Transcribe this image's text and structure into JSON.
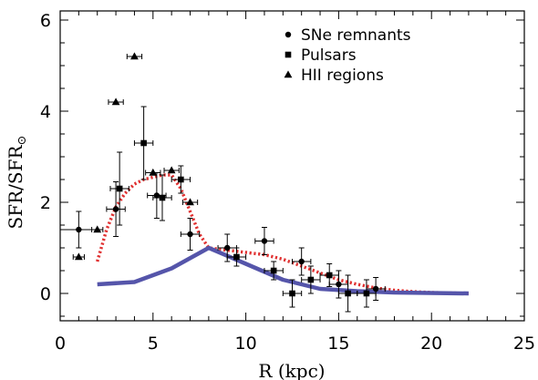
{
  "chart_data": {
    "type": "scatter",
    "xlabel": "R (kpc)",
    "ylabel": "SFR/SFR",
    "ylabel_sub": "⊙",
    "xlim": [
      0,
      25
    ],
    "ylim": [
      -0.6,
      6.2
    ],
    "xticks": [
      0,
      5,
      10,
      15,
      20,
      25
    ],
    "yticks": [
      0,
      2,
      4,
      6
    ],
    "grid": false,
    "legend_position": "top-right",
    "legend": [
      {
        "label": "SNe remnants",
        "marker": "circle"
      },
      {
        "label": "Pulsars",
        "marker": "square"
      },
      {
        "label": "HII regions",
        "marker": "triangle"
      }
    ],
    "series": [
      {
        "name": "SNe remnants",
        "marker": "circle",
        "points": [
          {
            "x": 1.0,
            "y": 1.4,
            "xerr": 1.0,
            "yerr": 0.4
          },
          {
            "x": 3.0,
            "y": 1.85,
            "xerr": 0.5,
            "yerr": 0.6
          },
          {
            "x": 5.2,
            "y": 2.15,
            "xerr": 0.5,
            "yerr": 0.5
          },
          {
            "x": 7.0,
            "y": 1.3,
            "xerr": 0.5,
            "yerr": 0.35
          },
          {
            "x": 9.0,
            "y": 1.0,
            "xerr": 0.5,
            "yerr": 0.3
          },
          {
            "x": 11.0,
            "y": 1.15,
            "xerr": 0.5,
            "yerr": 0.3
          },
          {
            "x": 13.0,
            "y": 0.7,
            "xerr": 0.5,
            "yerr": 0.3
          },
          {
            "x": 15.0,
            "y": 0.2,
            "xerr": 0.5,
            "yerr": 0.3
          },
          {
            "x": 17.0,
            "y": 0.1,
            "xerr": 0.5,
            "yerr": 0.25
          }
        ]
      },
      {
        "name": "Pulsars",
        "marker": "square",
        "points": [
          {
            "x": 3.2,
            "y": 2.3,
            "xerr": 0.5,
            "yerr": 0.8
          },
          {
            "x": 4.5,
            "y": 3.3,
            "xerr": 0.5,
            "yerr": 0.8
          },
          {
            "x": 5.5,
            "y": 2.1,
            "xerr": 0.5,
            "yerr": 0.5
          },
          {
            "x": 6.5,
            "y": 2.5,
            "xerr": 0.5,
            "yerr": 0.3
          },
          {
            "x": 9.5,
            "y": 0.8,
            "xerr": 0.5,
            "yerr": 0.2
          },
          {
            "x": 11.5,
            "y": 0.5,
            "xerr": 0.5,
            "yerr": 0.2
          },
          {
            "x": 12.5,
            "y": 0.0,
            "xerr": 0.5,
            "yerr": 0.3
          },
          {
            "x": 13.5,
            "y": 0.3,
            "xerr": 0.5,
            "yerr": 0.3
          },
          {
            "x": 14.5,
            "y": 0.4,
            "xerr": 0.5,
            "yerr": 0.25
          },
          {
            "x": 15.5,
            "y": 0.0,
            "xerr": 0.5,
            "yerr": 0.4
          },
          {
            "x": 16.5,
            "y": 0.0,
            "xerr": 0.5,
            "yerr": 0.3
          }
        ]
      },
      {
        "name": "HII regions",
        "marker": "triangle",
        "points": [
          {
            "x": 1.0,
            "y": 0.8,
            "xerr": 0.3,
            "yerr": 0.0
          },
          {
            "x": 2.0,
            "y": 1.4,
            "xerr": 0.3,
            "yerr": 0.0
          },
          {
            "x": 3.0,
            "y": 4.2,
            "xerr": 0.4,
            "yerr": 0.0
          },
          {
            "x": 4.0,
            "y": 5.2,
            "xerr": 0.4,
            "yerr": 0.0
          },
          {
            "x": 5.0,
            "y": 2.65,
            "xerr": 0.4,
            "yerr": 0.0
          },
          {
            "x": 6.0,
            "y": 2.7,
            "xerr": 0.4,
            "yerr": 0.0
          },
          {
            "x": 7.0,
            "y": 2.0,
            "xerr": 0.4,
            "yerr": 0.0
          }
        ]
      }
    ],
    "curves": [
      {
        "style": "dotted",
        "color": "#e03030",
        "points": [
          [
            2.0,
            0.7
          ],
          [
            2.5,
            1.4
          ],
          [
            3.0,
            1.9
          ],
          [
            3.5,
            2.2
          ],
          [
            4.0,
            2.4
          ],
          [
            4.5,
            2.5
          ],
          [
            5.0,
            2.55
          ],
          [
            5.5,
            2.6
          ],
          [
            6.0,
            2.6
          ],
          [
            6.5,
            2.3
          ],
          [
            7.0,
            1.8
          ],
          [
            7.5,
            1.3
          ],
          [
            8.0,
            1.0
          ],
          [
            9.0,
            0.95
          ],
          [
            10.0,
            0.9
          ],
          [
            11.0,
            0.85
          ],
          [
            12.0,
            0.75
          ],
          [
            13.0,
            0.6
          ],
          [
            14.0,
            0.45
          ],
          [
            15.0,
            0.3
          ],
          [
            16.0,
            0.2
          ],
          [
            17.0,
            0.12
          ],
          [
            18.0,
            0.07
          ],
          [
            19.0,
            0.04
          ],
          [
            20.0,
            0.02
          ],
          [
            22.0,
            0.0
          ]
        ]
      },
      {
        "style": "solid",
        "color": "#5555aa",
        "points": [
          [
            2.0,
            0.2
          ],
          [
            4.0,
            0.25
          ],
          [
            6.0,
            0.55
          ],
          [
            8.0,
            1.0
          ],
          [
            10.0,
            0.65
          ],
          [
            12.0,
            0.3
          ],
          [
            14.0,
            0.1
          ],
          [
            16.0,
            0.05
          ],
          [
            18.0,
            0.02
          ],
          [
            22.0,
            0.0
          ]
        ]
      }
    ]
  }
}
